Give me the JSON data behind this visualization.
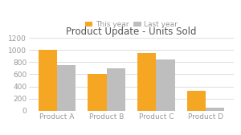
{
  "title": "Product Update - Units Sold",
  "categories": [
    "Product A",
    "Product B",
    "Product C",
    "Product D"
  ],
  "this_year": [
    1000,
    600,
    950,
    325
  ],
  "last_year": [
    750,
    700,
    850,
    50
  ],
  "this_year_color": "#F5A623",
  "last_year_color": "#BEBEBE",
  "legend_labels": [
    "This year",
    "Last year"
  ],
  "ylim": [
    0,
    1200
  ],
  "yticks": [
    0,
    200,
    400,
    600,
    800,
    1000,
    1200
  ],
  "background_color": "#FFFFFF",
  "grid_color": "#D8D8D8",
  "title_fontsize": 8.5,
  "tick_fontsize": 6.5,
  "legend_fontsize": 6.5,
  "bar_width": 0.38,
  "title_color": "#555555",
  "tick_color": "#999999"
}
